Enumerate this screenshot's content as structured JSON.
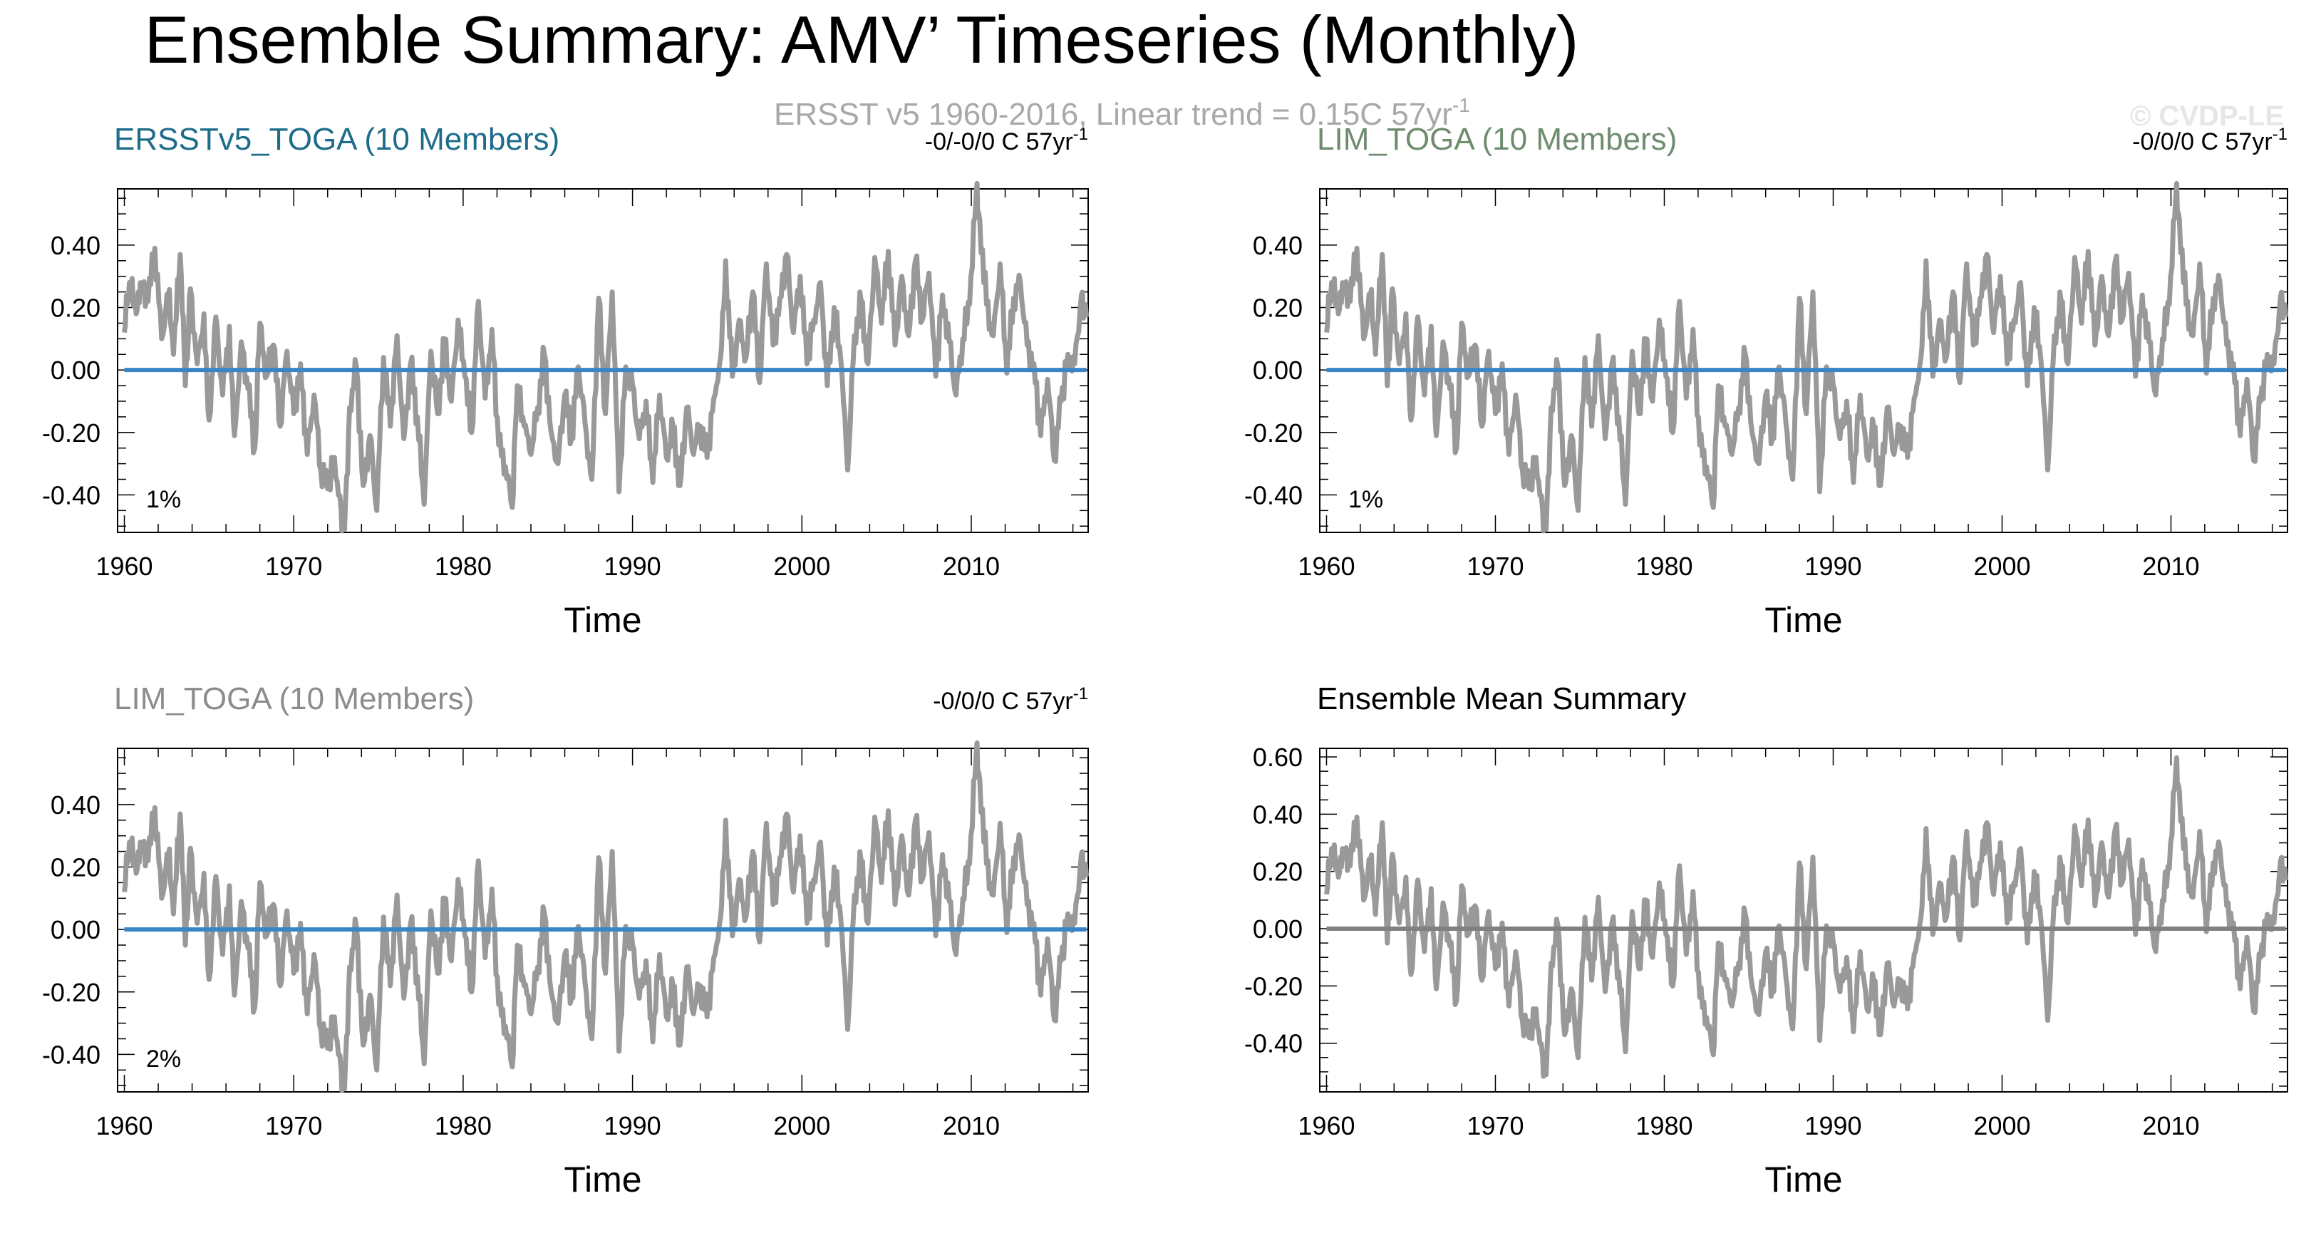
{
  "figure": {
    "title": "Ensemble Summary: AMV’ Timeseries (Monthly)",
    "subtitle": "ERSST v5 1960-2016, Linear trend = 0.15C 57yr",
    "subtitle_sup": "-1",
    "watermark": "© CVDP-LE"
  },
  "colors": {
    "series": "#999999",
    "zero_blue": "#3a85c8",
    "zero_gray": "#808080",
    "title_teal": "#1d6c8a",
    "title_green": "#6e8c6e",
    "title_gray": "#8c8c8c",
    "text": "#000000",
    "subtitle": "#a8a8a8",
    "watermark": "#e6e6e6"
  },
  "chart_data": [
    {
      "id": "p1",
      "type": "line",
      "title": "ERSSTv5_TOGA (10 Members)",
      "title_color": "#1d6c8a",
      "trend": "-0/-0/0 C 57yr",
      "trend_sup": "-1",
      "pct": "1%",
      "xlabel": "Time",
      "ylabel": "",
      "xlim": [
        1959.6,
        2016.9
      ],
      "ylim": [
        -0.52,
        0.58
      ],
      "xticks": [
        1960,
        1970,
        1980,
        1990,
        2000,
        2010
      ],
      "yticks": [
        -0.4,
        -0.2,
        0.0,
        0.2,
        0.4
      ],
      "ytick_labels": [
        "-0.40",
        "-0.20",
        "0.00",
        "0.20",
        "0.40"
      ],
      "zero_line_color": "#3a85c8"
    },
    {
      "id": "p2",
      "type": "line",
      "title": "LIM_TOGA (10 Members)",
      "title_color": "#6e8c6e",
      "trend": "-0/0/0 C 57yr",
      "trend_sup": "-1",
      "pct": "1%",
      "xlabel": "Time",
      "ylabel": "",
      "xlim": [
        1959.6,
        2016.9
      ],
      "ylim": [
        -0.52,
        0.58
      ],
      "xticks": [
        1960,
        1970,
        1980,
        1990,
        2000,
        2010
      ],
      "yticks": [
        -0.4,
        -0.2,
        0.0,
        0.2,
        0.4
      ],
      "ytick_labels": [
        "-0.40",
        "-0.20",
        "0.00",
        "0.20",
        "0.40"
      ],
      "zero_line_color": "#3a85c8"
    },
    {
      "id": "p3",
      "type": "line",
      "title": "LIM_TOGA (10 Members)",
      "title_color": "#8c8c8c",
      "trend": "-0/0/0 C 57yr",
      "trend_sup": "-1",
      "pct": "2%",
      "xlabel": "Time",
      "ylabel": "",
      "xlim": [
        1959.6,
        2016.9
      ],
      "ylim": [
        -0.52,
        0.58
      ],
      "xticks": [
        1960,
        1970,
        1980,
        1990,
        2000,
        2010
      ],
      "yticks": [
        -0.4,
        -0.2,
        0.0,
        0.2,
        0.4
      ],
      "ytick_labels": [
        "-0.40",
        "-0.20",
        "0.00",
        "0.20",
        "0.40"
      ],
      "zero_line_color": "#3a85c8"
    },
    {
      "id": "p4",
      "type": "line",
      "title": "Ensemble Mean Summary",
      "title_color": "#000000",
      "trend": "",
      "trend_sup": "",
      "pct": "",
      "xlabel": "Time",
      "ylabel": "",
      "xlim": [
        1959.6,
        2016.9
      ],
      "ylim": [
        -0.57,
        0.63
      ],
      "xticks": [
        1960,
        1970,
        1980,
        1990,
        2000,
        2010
      ],
      "yticks": [
        -0.4,
        -0.2,
        0.0,
        0.2,
        0.4,
        0.6
      ],
      "ytick_labels": [
        "-0.40",
        "-0.20",
        "0.00",
        "0.20",
        "0.40",
        "0.60"
      ],
      "zero_line_color": "#808080"
    }
  ],
  "series_anchors": {
    "note": "approximate AMV anomaly (C) read from the plotted curve; same curve in all panels",
    "x": [
      1960.0,
      1960.3,
      1960.7,
      1961.0,
      1961.4,
      1961.8,
      1962.2,
      1962.6,
      1962.9,
      1963.3,
      1963.6,
      1963.9,
      1964.3,
      1964.7,
      1965.0,
      1965.4,
      1965.8,
      1966.2,
      1966.5,
      1966.9,
      1967.3,
      1967.7,
      1968.0,
      1968.4,
      1968.8,
      1969.2,
      1969.6,
      1970.0,
      1970.4,
      1970.8,
      1971.2,
      1971.6,
      1972.0,
      1972.4,
      1972.8,
      1973.0,
      1973.3,
      1973.7,
      1974.1,
      1974.5,
      1974.9,
      1975.3,
      1975.7,
      1976.1,
      1976.5,
      1976.9,
      1977.3,
      1977.7,
      1978.1,
      1978.5,
      1978.9,
      1979.3,
      1979.7,
      1980.1,
      1980.5,
      1980.9,
      1981.3,
      1981.7,
      1982.1,
      1982.5,
      1982.9,
      1983.2,
      1983.6,
      1984.0,
      1984.4,
      1984.8,
      1985.2,
      1985.6,
      1986.0,
      1986.4,
      1986.8,
      1987.2,
      1987.6,
      1988.0,
      1988.4,
      1988.8,
      1989.2,
      1989.6,
      1990.0,
      1990.4,
      1990.8,
      1991.2,
      1991.6,
      1992.0,
      1992.4,
      1992.8,
      1993.2,
      1993.6,
      1994.0,
      1994.4,
      1994.8,
      1995.2,
      1995.5,
      1995.9,
      1996.3,
      1996.7,
      1997.1,
      1997.5,
      1997.9,
      1998.3,
      1998.7,
      1999.1,
      1999.5,
      1999.9,
      2000.3,
      2000.7,
      2001.1,
      2001.5,
      2001.9,
      2002.3,
      2002.7,
      2003.1,
      2003.5,
      2003.9,
      2004.3,
      2004.7,
      2005.1,
      2005.5,
      2005.9,
      2006.3,
      2006.7,
      2007.1,
      2007.5,
      2007.9,
      2008.3,
      2008.7,
      2009.1,
      2009.5,
      2009.9,
      2010.3,
      2010.5,
      2010.9,
      2011.3,
      2011.7,
      2012.1,
      2012.5,
      2012.9,
      2013.3,
      2013.7,
      2014.1,
      2014.5,
      2014.9,
      2015.3,
      2015.7,
      2016.1,
      2016.5,
      2016.8
    ],
    "y": [
      0.12,
      0.28,
      0.18,
      0.26,
      0.22,
      0.39,
      0.1,
      0.24,
      0.05,
      0.37,
      -0.05,
      0.26,
      0.02,
      0.18,
      -0.16,
      0.17,
      -0.08,
      0.14,
      -0.21,
      0.09,
      -0.06,
      -0.25,
      0.15,
      -0.02,
      0.08,
      -0.18,
      0.06,
      -0.14,
      0.02,
      -0.27,
      -0.08,
      -0.32,
      -0.38,
      -0.28,
      -0.45,
      -0.51,
      -0.12,
      0.01,
      -0.37,
      -0.21,
      -0.45,
      0.04,
      -0.18,
      0.11,
      -0.22,
      0.02,
      -0.15,
      -0.43,
      0.06,
      -0.14,
      0.1,
      -0.1,
      0.16,
      -0.02,
      -0.2,
      0.22,
      -0.09,
      0.13,
      -0.24,
      -0.31,
      -0.44,
      -0.05,
      -0.18,
      -0.27,
      -0.12,
      0.05,
      -0.2,
      -0.3,
      -0.08,
      -0.22,
      0.01,
      -0.17,
      -0.35,
      0.23,
      -0.14,
      0.25,
      -0.39,
      0.01,
      -0.05,
      -0.22,
      -0.1,
      -0.36,
      -0.08,
      -0.28,
      -0.18,
      -0.37,
      -0.12,
      -0.27,
      -0.18,
      -0.28,
      -0.09,
      0.04,
      0.35,
      -0.02,
      0.16,
      0.04,
      0.25,
      -0.04,
      0.34,
      0.08,
      0.23,
      0.37,
      0.12,
      0.3,
      0.02,
      0.16,
      0.28,
      -0.05,
      0.2,
      0.03,
      -0.32,
      0.11,
      0.22,
      0.02,
      0.36,
      0.15,
      0.38,
      0.08,
      0.3,
      0.11,
      0.35,
      0.16,
      0.31,
      -0.02,
      0.24,
      0.09,
      -0.08,
      0.1,
      0.21,
      0.57,
      0.48,
      0.21,
      0.11,
      0.34,
      -0.01,
      0.23,
      0.28,
      0.08,
      0.02,
      -0.21,
      -0.03,
      -0.29,
      -0.1,
      0.05,
      0.02,
      0.24,
      0.17
    ]
  },
  "axes_pixel_note": "ignored"
}
